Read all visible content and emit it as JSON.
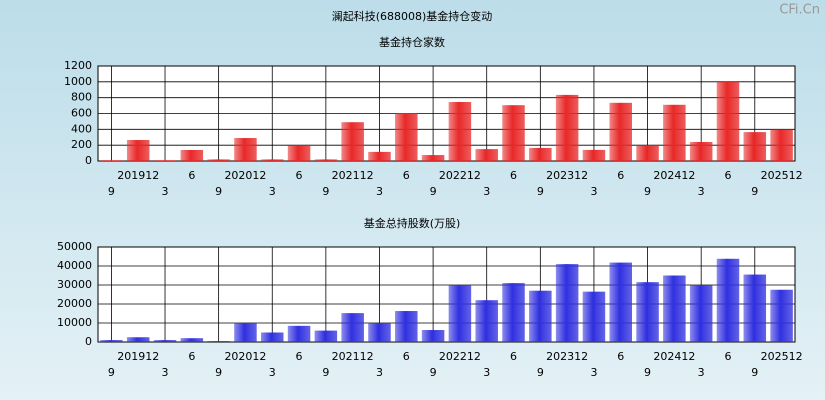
{
  "page_title": "澜起科技(688008)基金持仓变动",
  "watermark": "CFi.Cn",
  "chart_data": [
    {
      "type": "bar",
      "title": "基金持仓家数",
      "color": "#e82828",
      "categories": [
        "9",
        "201912",
        "3",
        "6",
        "9",
        "202012",
        "3",
        "6",
        "9",
        "202112",
        "3",
        "6",
        "9",
        "202212",
        "3",
        "6",
        "9",
        "202312",
        "3",
        "6",
        "9",
        "202412",
        "3",
        "6",
        "9",
        "202512"
      ],
      "values": [
        10,
        265,
        10,
        139,
        20,
        290,
        20,
        200,
        20,
        490,
        115,
        605,
        75,
        745,
        150,
        705,
        165,
        835,
        140,
        735,
        200,
        710,
        240,
        1010,
        365,
        400
      ],
      "ylim": [
        0,
        1200
      ],
      "yticks": [
        0,
        200,
        400,
        600,
        800,
        1000,
        1200
      ],
      "grid": true
    },
    {
      "type": "bar",
      "title": "基金总持股数(万股)",
      "color": "#3030e0",
      "categories": [
        "9",
        "201912",
        "3",
        "6",
        "9",
        "202012",
        "3",
        "6",
        "9",
        "202112",
        "3",
        "6",
        "9",
        "202212",
        "3",
        "6",
        "9",
        "202312",
        "3",
        "6",
        "9",
        "202412",
        "3",
        "6",
        "9",
        "202512"
      ],
      "values": [
        1000,
        2500,
        1000,
        2000,
        500,
        10000,
        5000,
        8500,
        6000,
        15200,
        10000,
        16300,
        6300,
        30000,
        22000,
        31000,
        27000,
        41000,
        26500,
        41800,
        31500,
        35000,
        30000,
        43800,
        35500,
        27500
      ],
      "ylim": [
        0,
        50000
      ],
      "yticks": [
        0,
        10000,
        20000,
        30000,
        40000,
        50000
      ],
      "grid": true
    }
  ]
}
